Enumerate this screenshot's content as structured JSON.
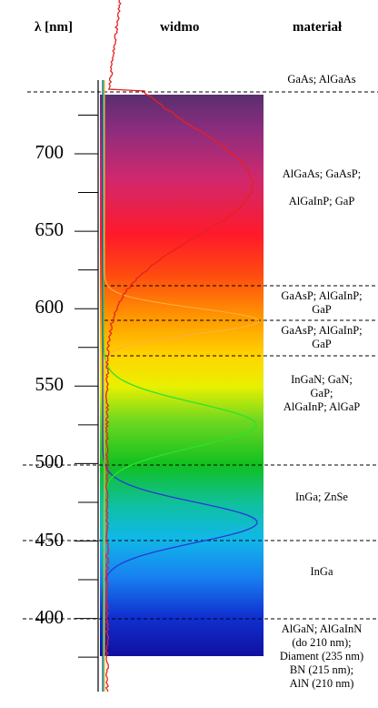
{
  "headers": {
    "lambda_label": "λ [nm]",
    "spectrum_label": "widmo",
    "material_label": "materiał"
  },
  "axis": {
    "ticks": [
      "700",
      "650",
      "600",
      "550",
      "500",
      "450",
      "400"
    ],
    "range_nm": [
      372,
      742
    ]
  },
  "materials": [
    {
      "lines": [
        "GaAs; AlGaAs"
      ]
    },
    {
      "lines": [
        "AlGaAs; GaAsP;",
        "",
        "AlGaInP; GaP"
      ]
    },
    {
      "lines": [
        "GaAsP; AlGaInP;",
        "GaP"
      ]
    },
    {
      "lines": [
        "GaAsP; AlGaInP;",
        "GaP"
      ]
    },
    {
      "lines": [
        "InGaN; GaN;",
        "GaP;",
        "AlGaInP; AlGaP"
      ]
    },
    {
      "lines": [
        "InGa; ZnSe"
      ]
    },
    {
      "lines": [
        "InGa"
      ]
    },
    {
      "lines": [
        "AlGaN; AlGaInN",
        "(do 210 nm);",
        "Diament (235 nm)",
        "BN (215 nm);",
        "AlN (210 nm)"
      ]
    }
  ],
  "colors": {
    "red_curve": "#e82020",
    "orange_curve": "#ffb040",
    "green_curve": "#30e030",
    "blue_curve": "#2838d8"
  }
}
